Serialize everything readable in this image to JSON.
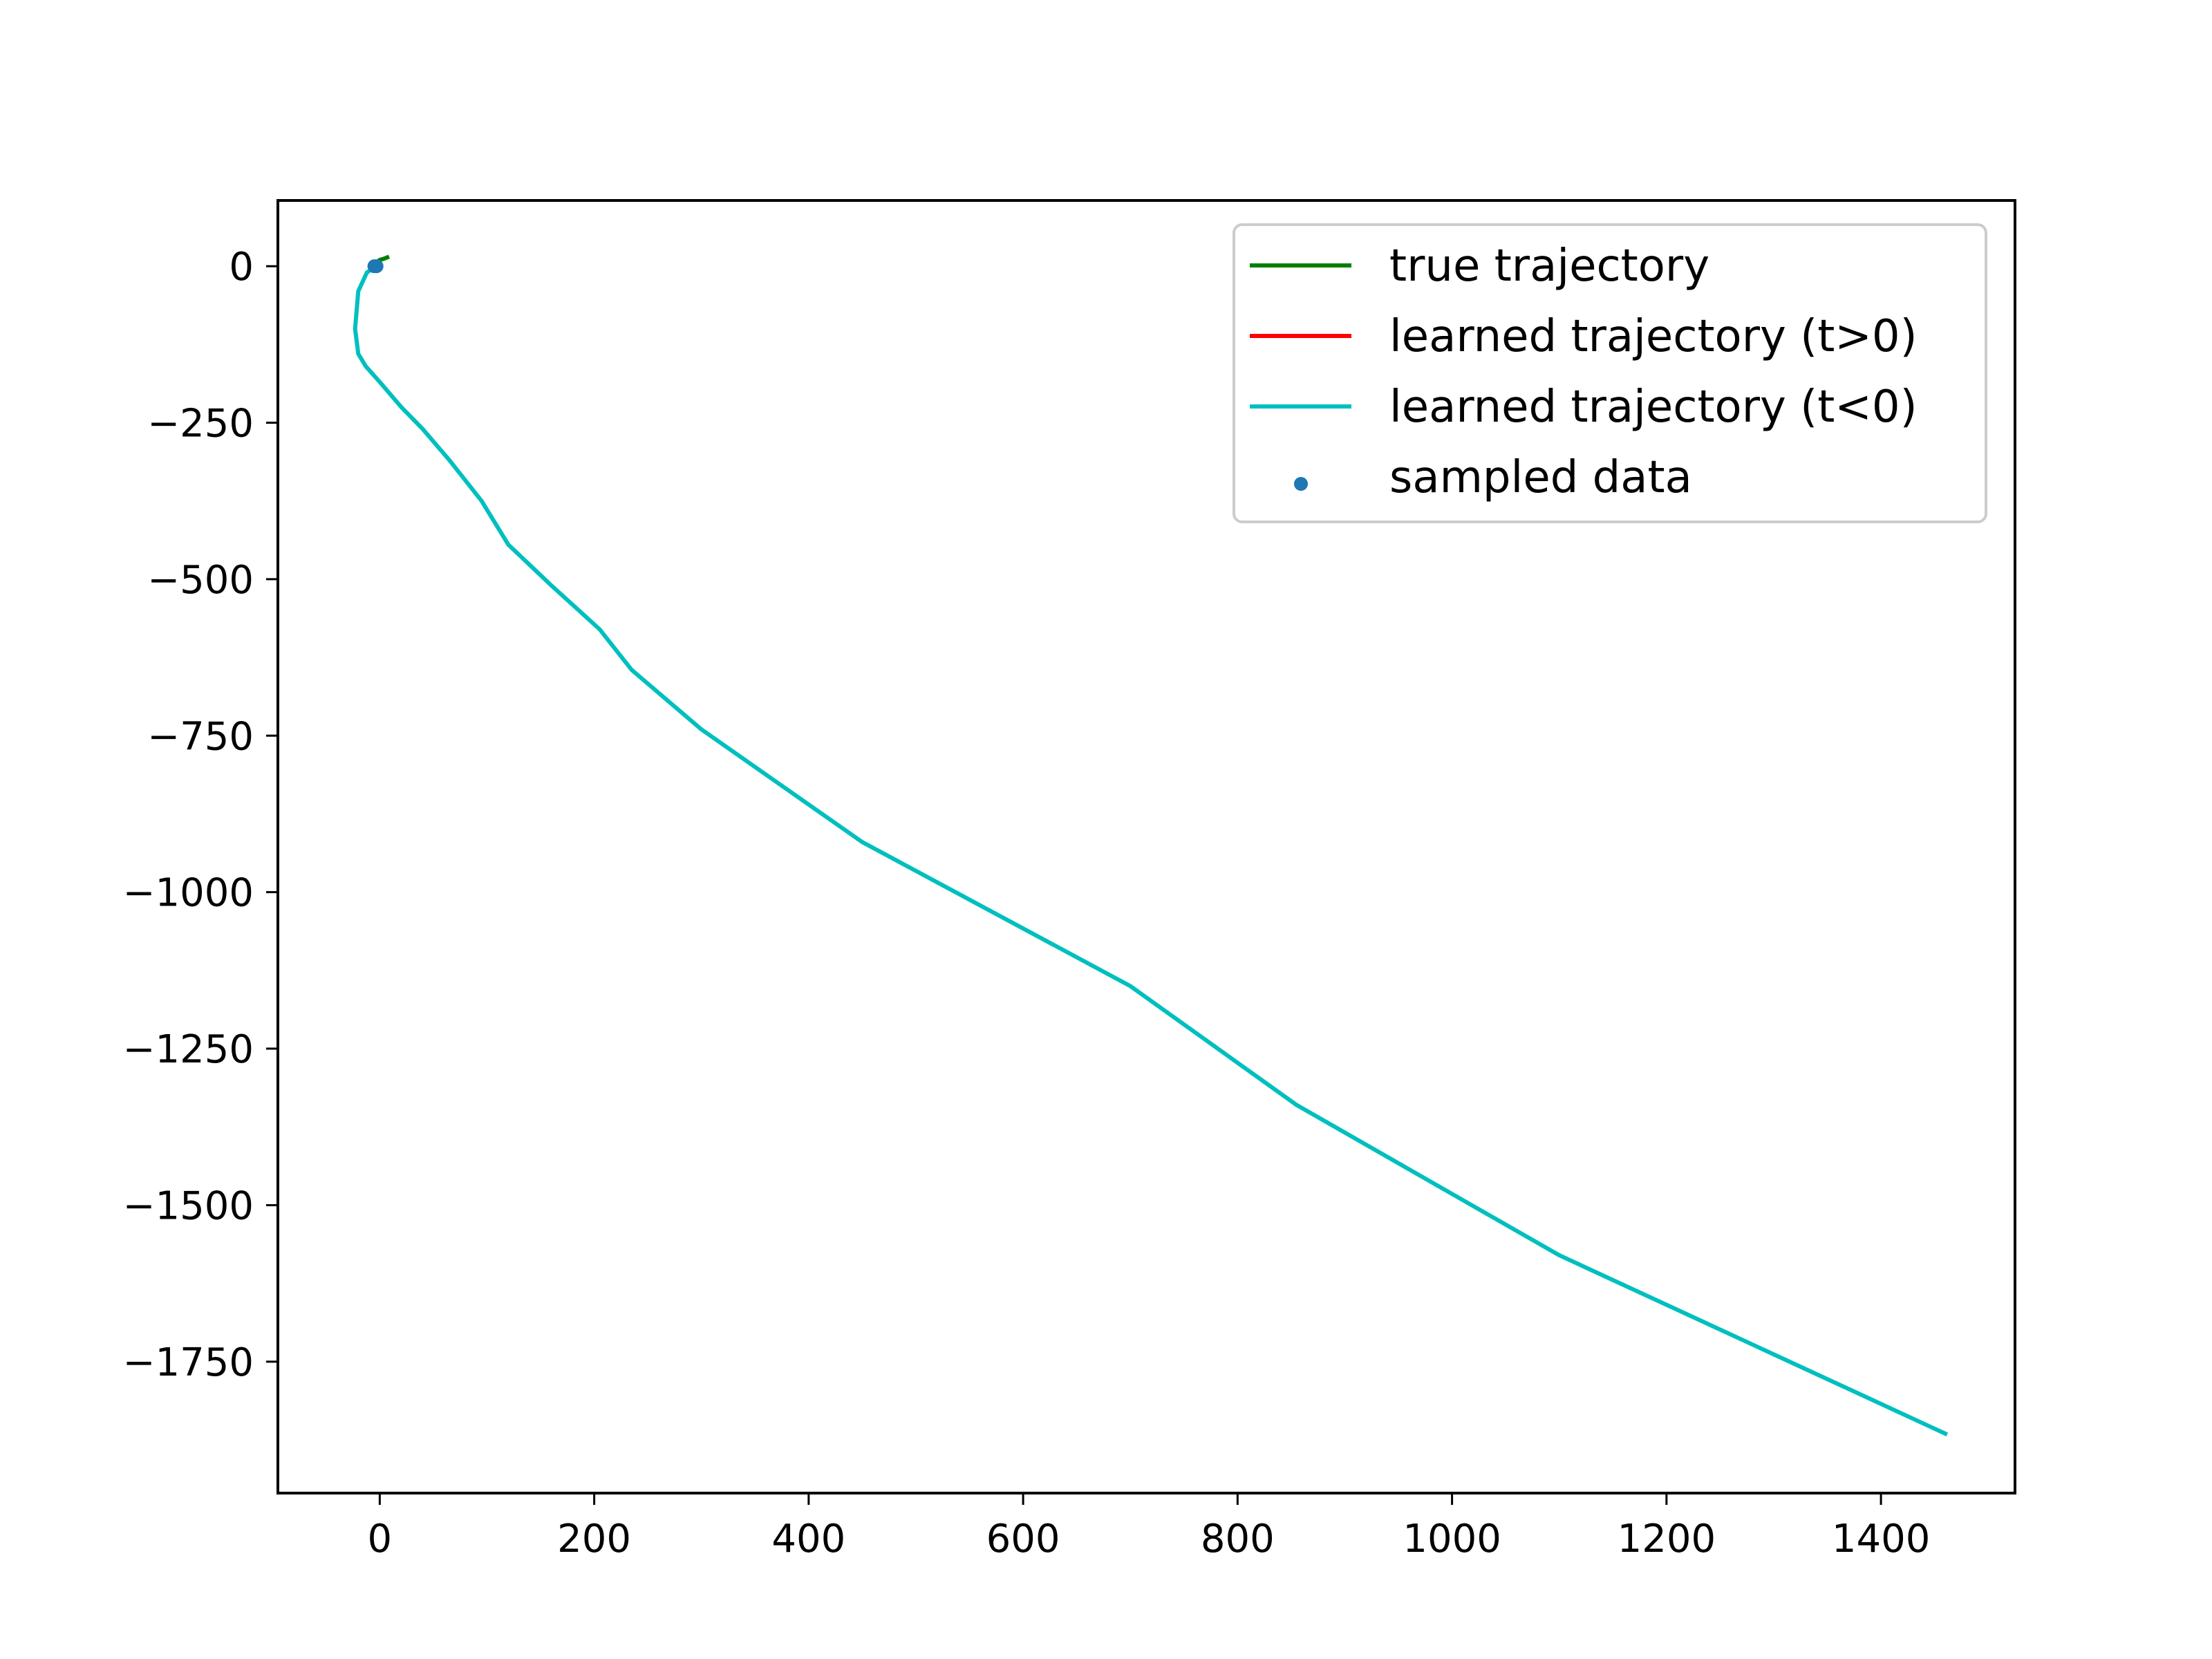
{
  "chart_data": {
    "type": "line",
    "title": "",
    "xlabel": "",
    "ylabel": "",
    "xlim": [
      -95,
      1525
    ],
    "ylim": [
      -1960,
      105
    ],
    "xticks": [
      0,
      200,
      400,
      600,
      800,
      1000,
      1200,
      1400
    ],
    "yticks": [
      0,
      -250,
      -500,
      -750,
      -1000,
      -1250,
      -1500,
      -1750
    ],
    "xtick_labels": [
      "0",
      "200",
      "400",
      "600",
      "800",
      "1000",
      "1200",
      "1400"
    ],
    "ytick_labels": [
      "0",
      "−250",
      "−500",
      "−750",
      "−1000",
      "−1250",
      "−1500",
      "−1750"
    ],
    "grid": false,
    "legend_position": "top-right",
    "series": [
      {
        "name": "true trajectory",
        "kind": "line",
        "color": "#008000",
        "x": [
          -5,
          -3,
          0,
          4,
          7
        ],
        "y": [
          -2,
          6,
          10,
          12,
          14
        ]
      },
      {
        "name": "learned trajectory (t>0)",
        "kind": "line",
        "color": "#ff0000",
        "x": [],
        "y": []
      },
      {
        "name": "learned trajectory (t<0)",
        "kind": "line",
        "color": "#00bfbf",
        "x": [
          -3,
          -12,
          -20,
          -23,
          -20,
          -13,
          0,
          20,
          40,
          65,
          95,
          120,
          160,
          205,
          235,
          300,
          450,
          700,
          855,
          1100,
          1460
        ],
        "y": [
          0,
          -10,
          -40,
          -100,
          -140,
          -160,
          -185,
          -225,
          -260,
          -310,
          -375,
          -445,
          -510,
          -580,
          -645,
          -740,
          -920,
          -1150,
          -1340,
          -1580,
          -1865
        ]
      },
      {
        "name": "sampled data",
        "kind": "scatter",
        "color": "#1f77b4",
        "x": [
          -5,
          -3
        ],
        "y": [
          0,
          0
        ]
      }
    ]
  }
}
